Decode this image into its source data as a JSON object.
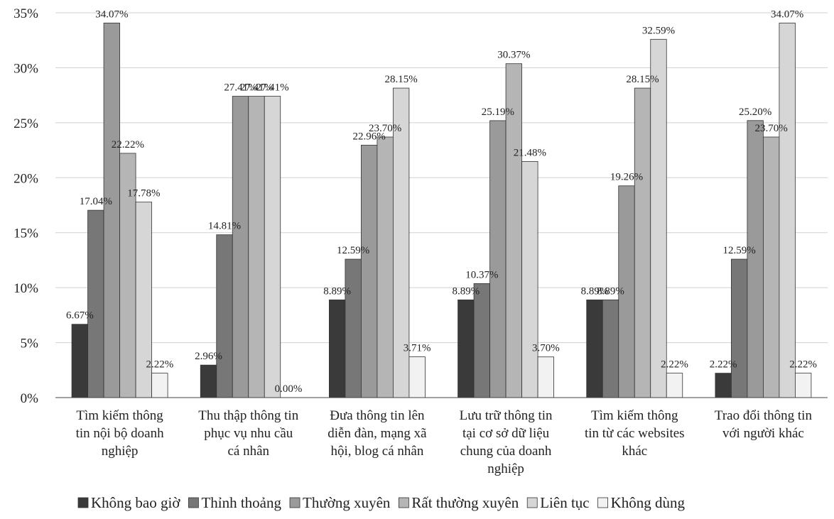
{
  "chart_data": {
    "type": "bar",
    "title": "",
    "xlabel": "",
    "ylabel": "",
    "ylim": [
      0,
      35
    ],
    "y_ticks": [
      "0%",
      "5%",
      "10%",
      "15%",
      "20%",
      "25%",
      "30%",
      "35%"
    ],
    "grid": true,
    "legend_position": "bottom",
    "categories": [
      [
        "Tìm kiếm thông",
        "tin nội bộ doanh",
        "nghiệp"
      ],
      [
        "Thu thập thông tin",
        "phục vụ nhu cầu",
        "cá nhân"
      ],
      [
        "Đưa thông tin lên",
        "diễn đàn, mạng xã",
        "hội, blog cá nhân"
      ],
      [
        "Lưu trữ thông tin",
        "tại cơ sở dữ liệu",
        "chung của doanh",
        "nghiệp"
      ],
      [
        "Tìm kiếm thông",
        "tin từ các websites",
        "khác"
      ],
      [
        "Trao đổi thông tin",
        "với người khác"
      ]
    ],
    "series": [
      {
        "name": "Không bao giờ",
        "color": "#3a3a3a",
        "values": [
          6.67,
          2.96,
          8.89,
          8.89,
          8.89,
          2.22
        ],
        "labels": [
          "6.67%",
          "2.96%",
          "8.89%",
          "8.89%",
          "8.89%",
          "2.22%"
        ]
      },
      {
        "name": "Thỉnh thoảng",
        "color": "#777777",
        "values": [
          17.04,
          14.81,
          12.59,
          10.37,
          8.89,
          12.59
        ],
        "labels": [
          "17.04%",
          "14.81%",
          "12.59%",
          "10.37%",
          "8.89%",
          "12.59%"
        ]
      },
      {
        "name": "Thường xuyên",
        "color": "#9a9a9a",
        "values": [
          34.07,
          27.41,
          22.96,
          25.19,
          19.26,
          25.2
        ],
        "labels": [
          "34.07%",
          "27.41%",
          "22.96%",
          "25.19%",
          "19.26%",
          "25.20%"
        ]
      },
      {
        "name": "Rất thường xuyên",
        "color": "#b5b5b5",
        "values": [
          22.22,
          27.41,
          23.7,
          30.37,
          28.15,
          23.7
        ],
        "labels": [
          "22.22%",
          "27.41%",
          "23.70%",
          "30.37%",
          "28.15%",
          "23.70%"
        ]
      },
      {
        "name": "Liên tục",
        "color": "#d6d6d6",
        "values": [
          17.78,
          27.41,
          28.15,
          21.48,
          32.59,
          34.07
        ],
        "labels": [
          "17.78%",
          "27.41%",
          "28.15%",
          "21.48%",
          "32.59%",
          "34.07%"
        ]
      },
      {
        "name": "Không dùng",
        "color": "#f2f2f2",
        "values": [
          2.22,
          0.0,
          3.71,
          3.7,
          2.22,
          2.22
        ],
        "labels": [
          "2.22%",
          "0.00%",
          "3.71%",
          "3.70%",
          "2.22%",
          "2.22%"
        ]
      }
    ]
  }
}
